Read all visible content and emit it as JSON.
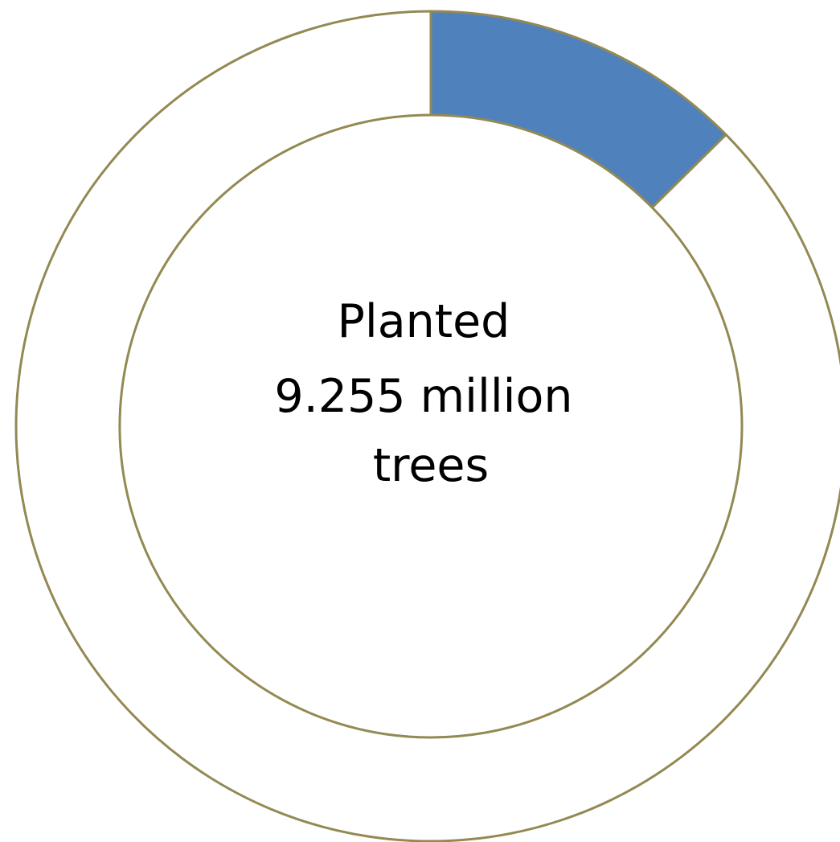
{
  "chart_data": {
    "type": "donut",
    "segments": [
      {
        "value": 12.6,
        "color": "#4f81bd"
      },
      {
        "value": 87.4,
        "color": "#ffffff"
      }
    ],
    "segment_border_color": "#938953",
    "center_label": {
      "lines": [
        "Planted",
        "9.255 million",
        "trees"
      ]
    }
  }
}
